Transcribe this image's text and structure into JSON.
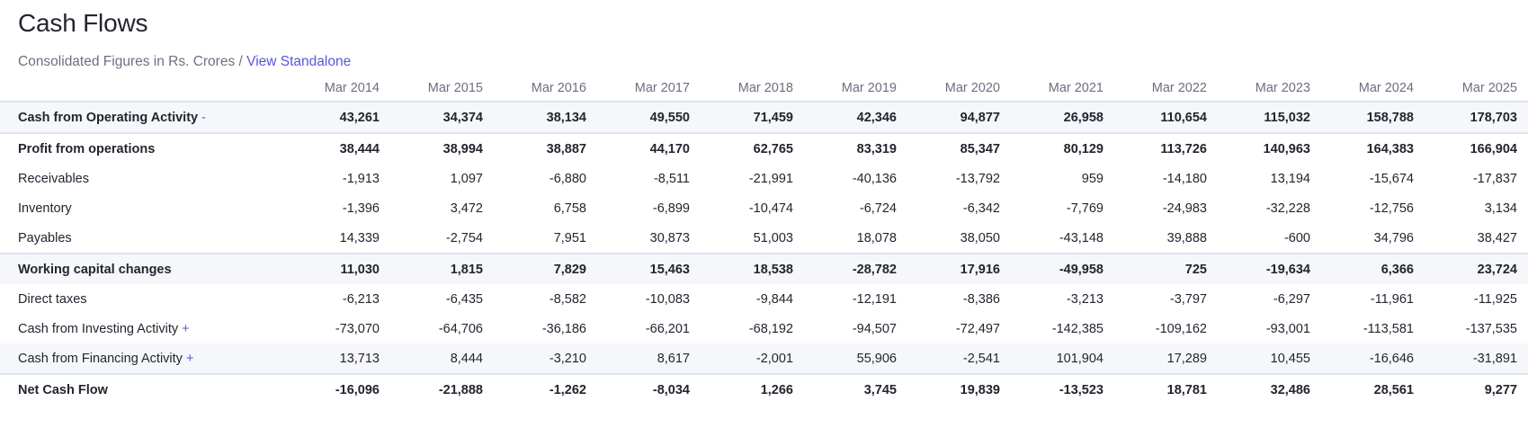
{
  "header": {
    "title": "Cash Flows",
    "subtitle_prefix": "Consolidated Figures in Rs. Crores / ",
    "standalone_link": "View Standalone"
  },
  "table": {
    "columns": [
      "Mar 2014",
      "Mar 2015",
      "Mar 2016",
      "Mar 2017",
      "Mar 2018",
      "Mar 2019",
      "Mar 2020",
      "Mar 2021",
      "Mar 2022",
      "Mar 2023",
      "Mar 2024",
      "Mar 2025"
    ],
    "rows": [
      {
        "label": "Cash from Operating Activity",
        "toggle": "-",
        "values": [
          "43,261",
          "34,374",
          "38,134",
          "49,550",
          "71,459",
          "42,346",
          "94,877",
          "26,958",
          "110,654",
          "115,032",
          "158,788",
          "178,703"
        ]
      },
      {
        "label": "Profit from operations",
        "values": [
          "38,444",
          "38,994",
          "38,887",
          "44,170",
          "62,765",
          "83,319",
          "85,347",
          "80,129",
          "113,726",
          "140,963",
          "164,383",
          "166,904"
        ]
      },
      {
        "label": "Receivables",
        "values": [
          "-1,913",
          "1,097",
          "-6,880",
          "-8,511",
          "-21,991",
          "-40,136",
          "-13,792",
          "959",
          "-14,180",
          "13,194",
          "-15,674",
          "-17,837"
        ]
      },
      {
        "label": "Inventory",
        "values": [
          "-1,396",
          "3,472",
          "6,758",
          "-6,899",
          "-10,474",
          "-6,724",
          "-6,342",
          "-7,769",
          "-24,983",
          "-32,228",
          "-12,756",
          "3,134"
        ]
      },
      {
        "label": "Payables",
        "values": [
          "14,339",
          "-2,754",
          "7,951",
          "30,873",
          "51,003",
          "18,078",
          "38,050",
          "-43,148",
          "39,888",
          "-600",
          "34,796",
          "38,427"
        ]
      },
      {
        "label": "Working capital changes",
        "values": [
          "11,030",
          "1,815",
          "7,829",
          "15,463",
          "18,538",
          "-28,782",
          "17,916",
          "-49,958",
          "725",
          "-19,634",
          "6,366",
          "23,724"
        ]
      },
      {
        "label": "Direct taxes",
        "values": [
          "-6,213",
          "-6,435",
          "-8,582",
          "-10,083",
          "-9,844",
          "-12,191",
          "-8,386",
          "-3,213",
          "-3,797",
          "-6,297",
          "-11,961",
          "-11,925"
        ]
      },
      {
        "label": "Cash from Investing Activity",
        "toggle": "+",
        "values": [
          "-73,070",
          "-64,706",
          "-36,186",
          "-66,201",
          "-68,192",
          "-94,507",
          "-72,497",
          "-142,385",
          "-109,162",
          "-93,001",
          "-113,581",
          "-137,535"
        ]
      },
      {
        "label": "Cash from Financing Activity",
        "toggle": "+",
        "values": [
          "13,713",
          "8,444",
          "-3,210",
          "8,617",
          "-2,001",
          "55,906",
          "-2,541",
          "101,904",
          "17,289",
          "10,455",
          "-16,646",
          "-31,891"
        ]
      },
      {
        "label": "Net Cash Flow",
        "values": [
          "-16,096",
          "-21,888",
          "-1,262",
          "-8,034",
          "1,266",
          "3,745",
          "19,839",
          "-13,523",
          "18,781",
          "32,486",
          "28,561",
          "9,277"
        ]
      }
    ]
  }
}
